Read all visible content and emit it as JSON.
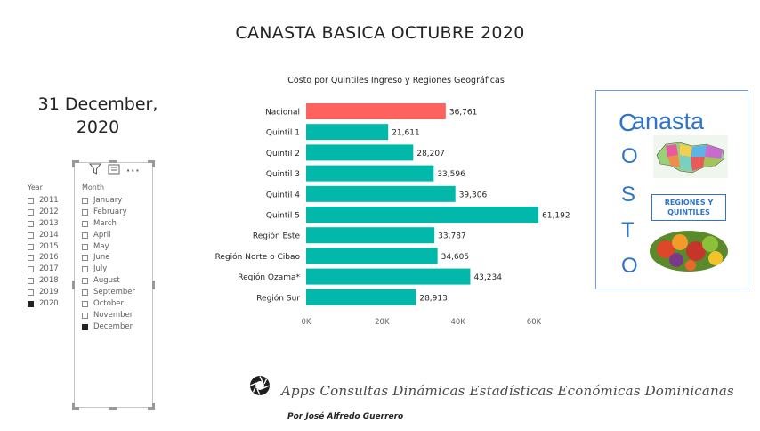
{
  "page": {
    "title": "CANASTA BASICA OCTUBRE 2020",
    "date_card": "31 December, 2020"
  },
  "year_slicer": {
    "header": "Year",
    "items": [
      {
        "label": "2011",
        "checked": false
      },
      {
        "label": "2012",
        "checked": false
      },
      {
        "label": "2013",
        "checked": false
      },
      {
        "label": "2014",
        "checked": false
      },
      {
        "label": "2015",
        "checked": false
      },
      {
        "label": "2016",
        "checked": false
      },
      {
        "label": "2017",
        "checked": false
      },
      {
        "label": "2018",
        "checked": false
      },
      {
        "label": "2019",
        "checked": false
      },
      {
        "label": "2020",
        "checked": true
      }
    ]
  },
  "month_slicer": {
    "header": "Month",
    "toolbar_more": "···",
    "items": [
      {
        "label": "January",
        "checked": false
      },
      {
        "label": "February",
        "checked": false
      },
      {
        "label": "March",
        "checked": false
      },
      {
        "label": "April",
        "checked": false
      },
      {
        "label": "May",
        "checked": false
      },
      {
        "label": "June",
        "checked": false
      },
      {
        "label": "July",
        "checked": false
      },
      {
        "label": "August",
        "checked": false
      },
      {
        "label": "September",
        "checked": false
      },
      {
        "label": "October",
        "checked": false
      },
      {
        "label": "November",
        "checked": false
      },
      {
        "label": "December",
        "checked": true
      }
    ]
  },
  "chart_data": {
    "type": "bar",
    "orientation": "horizontal",
    "title": "Costo por Quintiles Ingreso y Regiones Geográficas",
    "categories": [
      "Nacional",
      "Quintil 1",
      "Quintil 2",
      "Quintil 3",
      "Quintil 4",
      "Quintil 5",
      "Región Este",
      "Región Norte o Cibao",
      "Región Ozama*",
      "Región Sur"
    ],
    "values": [
      36761,
      21611,
      28207,
      33596,
      39306,
      61192,
      33787,
      34605,
      43234,
      28913
    ],
    "data_labels": [
      "36,761",
      "21,611",
      "28,207",
      "33,596",
      "39,306",
      "61,192",
      "33,787",
      "34,605",
      "43,234",
      "28,913"
    ],
    "xlim": [
      0,
      60000
    ],
    "x_ticks": [
      0,
      20000,
      40000,
      60000
    ],
    "x_tick_labels": [
      "0K",
      "20K",
      "40K",
      "60K"
    ],
    "grid": false,
    "colors": {
      "highlight": "#fd625e",
      "default": "#01b8aa"
    },
    "highlight_index": 0
  },
  "canasta_card": {
    "word": "anasta",
    "costo_letters": [
      "C",
      "O",
      "S",
      "T",
      "O"
    ],
    "regiones_label": "REGIONES Y QUINTILES",
    "accent": "#2e74c8"
  },
  "footer": {
    "apps": "Apps Consultas Dinámicas Estadísticas Económicas Dominicanas",
    "author": "Por José Alfredo Guerrero"
  }
}
